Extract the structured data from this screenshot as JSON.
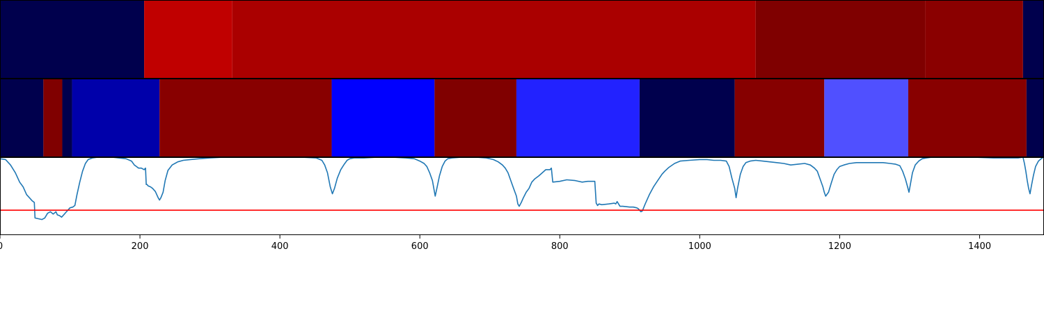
{
  "chart_data": [
    {
      "type": "heatmap",
      "panel": "top-band",
      "segments": [
        {
          "start": 0,
          "end": 206,
          "color": "#00004d"
        },
        {
          "start": 206,
          "end": 332,
          "color": "#c00000"
        },
        {
          "start": 332,
          "end": 1080,
          "color": "#aa0000"
        },
        {
          "start": 1080,
          "end": 1322,
          "color": "#7f0000"
        },
        {
          "start": 1322,
          "end": 1462,
          "color": "#8a0000"
        },
        {
          "start": 1462,
          "end": 1490,
          "color": "#00004d"
        }
      ]
    },
    {
      "type": "heatmap",
      "panel": "middle-band",
      "segments": [
        {
          "start": 0,
          "end": 62,
          "color": "#00004d"
        },
        {
          "start": 62,
          "end": 89,
          "color": "#800000"
        },
        {
          "start": 89,
          "end": 103,
          "color": "#00004d"
        },
        {
          "start": 103,
          "end": 228,
          "color": "#0000aa"
        },
        {
          "start": 228,
          "end": 474,
          "color": "#880000"
        },
        {
          "start": 474,
          "end": 621,
          "color": "#0000ff"
        },
        {
          "start": 621,
          "end": 738,
          "color": "#800000"
        },
        {
          "start": 738,
          "end": 914,
          "color": "#2222ff"
        },
        {
          "start": 914,
          "end": 1050,
          "color": "#00004d"
        },
        {
          "start": 1050,
          "end": 1178,
          "color": "#860000"
        },
        {
          "start": 1178,
          "end": 1298,
          "color": "#5050ff"
        },
        {
          "start": 1298,
          "end": 1467,
          "color": "#880000"
        },
        {
          "start": 1467,
          "end": 1490,
          "color": "#00004d"
        }
      ]
    },
    {
      "type": "line",
      "panel": "bottom-plot",
      "xlim": [
        0,
        1490
      ],
      "ylim": [
        0,
        1
      ],
      "xticks": [
        0,
        200,
        400,
        600,
        800,
        1000,
        1200,
        1400
      ],
      "xtick_labels": [
        "0",
        "200",
        "400",
        "600",
        "800",
        "1000",
        "1200",
        "1400"
      ],
      "threshold": 0.32,
      "threshold_color": "#ff0000",
      "line_color": "#1f77b4",
      "series": [
        {
          "x": [
            0,
            8,
            15,
            22,
            28,
            33,
            38,
            42,
            46,
            49,
            50,
            55,
            60,
            64,
            68,
            72,
            76,
            80,
            82,
            85,
            88,
            91,
            94,
            97,
            100,
            104,
            107,
            110,
            114,
            118,
            122,
            126,
            132,
            140,
            150,
            160,
            170,
            180,
            188,
            192,
            195,
            198,
            202,
            206,
            208,
            209,
            210,
            212,
            215,
            218,
            222,
            226,
            228,
            230,
            233,
            236,
            240,
            246,
            254,
            262,
            272,
            285,
            300,
            320,
            345,
            370,
            400,
            430,
            452,
            460,
            464,
            468,
            472,
            475,
            478,
            482,
            487,
            492,
            496,
            500,
            506,
            520,
            540,
            560,
            580,
            592,
            600,
            606,
            610,
            614,
            618,
            620,
            622,
            625,
            628,
            632,
            636,
            640,
            646,
            660,
            680,
            695,
            705,
            712,
            718,
            722,
            726,
            730,
            734,
            738,
            740,
            742,
            745,
            748,
            752,
            756,
            760,
            764,
            770,
            775,
            780,
            786,
            788,
            790,
            800,
            810,
            822,
            832,
            840,
            848,
            850,
            852,
            854,
            856,
            860,
            870,
            878,
            880,
            882,
            886,
            890,
            900,
            905,
            910,
            912,
            914,
            916,
            918,
            922,
            928,
            934,
            940,
            946,
            950,
            956,
            964,
            972,
            985,
            1000,
            1010,
            1020,
            1030,
            1038,
            1042,
            1046,
            1050,
            1052,
            1054,
            1058,
            1062,
            1066,
            1072,
            1080,
            1090,
            1100,
            1110,
            1120,
            1130,
            1140,
            1150,
            1158,
            1164,
            1168,
            1172,
            1176,
            1178,
            1180,
            1184,
            1188,
            1192,
            1196,
            1200,
            1206,
            1214,
            1224,
            1236,
            1250,
            1262,
            1272,
            1280,
            1286,
            1290,
            1294,
            1297,
            1299,
            1301,
            1304,
            1308,
            1313,
            1318,
            1324,
            1332,
            1345,
            1365,
            1390,
            1420,
            1440,
            1455,
            1462,
            1464,
            1466,
            1468,
            1470,
            1472,
            1474,
            1477,
            1480,
            1484,
            1488,
            1490
          ],
          "y": [
            0.98,
            0.97,
            0.9,
            0.8,
            0.68,
            0.62,
            0.52,
            0.48,
            0.44,
            0.42,
            0.22,
            0.21,
            0.2,
            0.22,
            0.28,
            0.3,
            0.27,
            0.3,
            0.26,
            0.25,
            0.23,
            0.26,
            0.29,
            0.32,
            0.35,
            0.36,
            0.38,
            0.52,
            0.68,
            0.82,
            0.92,
            0.97,
            0.99,
            1.0,
            1.0,
            1.0,
            0.99,
            0.98,
            0.95,
            0.9,
            0.88,
            0.86,
            0.86,
            0.84,
            0.86,
            0.65,
            0.65,
            0.63,
            0.62,
            0.6,
            0.56,
            0.48,
            0.45,
            0.48,
            0.55,
            0.7,
            0.83,
            0.9,
            0.94,
            0.96,
            0.97,
            0.98,
            0.99,
            1.0,
            1.0,
            1.0,
            1.0,
            1.0,
            0.99,
            0.96,
            0.9,
            0.8,
            0.62,
            0.53,
            0.6,
            0.73,
            0.84,
            0.91,
            0.96,
            0.98,
            0.99,
            0.99,
            1.0,
            1.0,
            0.99,
            0.98,
            0.95,
            0.92,
            0.88,
            0.8,
            0.7,
            0.6,
            0.5,
            0.63,
            0.76,
            0.88,
            0.95,
            0.98,
            0.99,
            1.0,
            1.0,
            0.99,
            0.97,
            0.94,
            0.9,
            0.86,
            0.8,
            0.7,
            0.6,
            0.5,
            0.4,
            0.37,
            0.42,
            0.48,
            0.55,
            0.6,
            0.68,
            0.72,
            0.76,
            0.8,
            0.84,
            0.84,
            0.86,
            0.68,
            0.69,
            0.71,
            0.7,
            0.68,
            0.69,
            0.69,
            0.69,
            0.41,
            0.38,
            0.4,
            0.39,
            0.4,
            0.41,
            0.4,
            0.43,
            0.37,
            0.37,
            0.36,
            0.36,
            0.35,
            0.34,
            0.32,
            0.3,
            0.31,
            0.4,
            0.52,
            0.62,
            0.7,
            0.78,
            0.82,
            0.87,
            0.92,
            0.95,
            0.96,
            0.97,
            0.97,
            0.96,
            0.96,
            0.95,
            0.88,
            0.73,
            0.6,
            0.48,
            0.6,
            0.78,
            0.88,
            0.93,
            0.95,
            0.96,
            0.95,
            0.94,
            0.93,
            0.92,
            0.9,
            0.91,
            0.92,
            0.9,
            0.86,
            0.82,
            0.72,
            0.62,
            0.55,
            0.5,
            0.55,
            0.67,
            0.78,
            0.84,
            0.88,
            0.9,
            0.92,
            0.93,
            0.93,
            0.93,
            0.93,
            0.92,
            0.91,
            0.89,
            0.82,
            0.72,
            0.62,
            0.55,
            0.65,
            0.8,
            0.9,
            0.95,
            0.98,
            0.99,
            1.0,
            1.0,
            1.0,
            1.0,
            0.99,
            0.99,
            0.99,
            1.0,
            0.92,
            0.82,
            0.7,
            0.6,
            0.53,
            0.63,
            0.77,
            0.88,
            0.95,
            0.98,
            0.99
          ]
        }
      ]
    }
  ]
}
